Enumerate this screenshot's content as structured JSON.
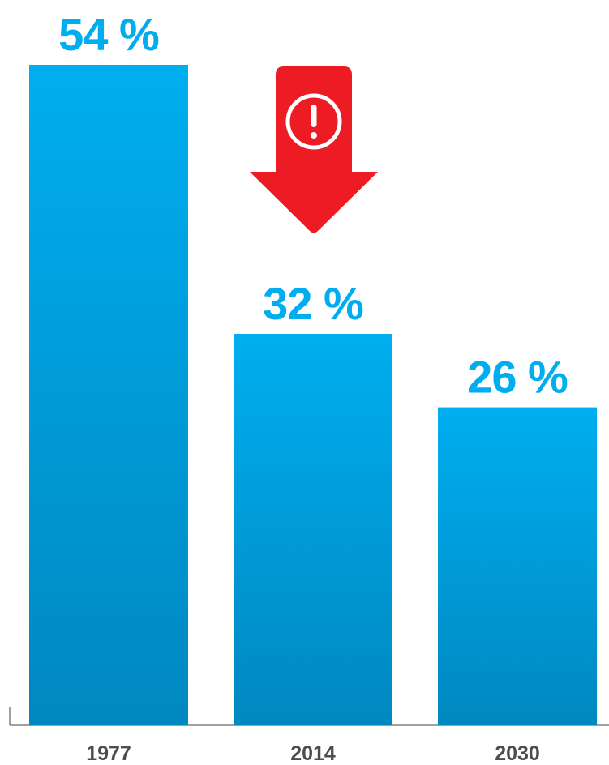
{
  "chart_data": {
    "type": "bar",
    "categories": [
      "1977",
      "2014",
      "2030"
    ],
    "values": [
      54,
      32,
      26
    ],
    "value_labels": [
      "54 %",
      "32 %",
      "26 %"
    ],
    "unit": "%",
    "ylim": [
      0,
      54
    ],
    "grid": false,
    "legend": "none",
    "colors": {
      "bar_top": "#00aeef",
      "bar_bottom": "#0088c0",
      "value_text": "#00aeef",
      "category_text": "#4d4d4d",
      "axis": "#808080",
      "arrow": "#ed1c24",
      "arrow_icon": "#ffffff"
    },
    "annotation": {
      "shape": "down-arrow",
      "icon": "exclamation-circle-icon",
      "between_categories": [
        "1977",
        "2014"
      ]
    }
  }
}
